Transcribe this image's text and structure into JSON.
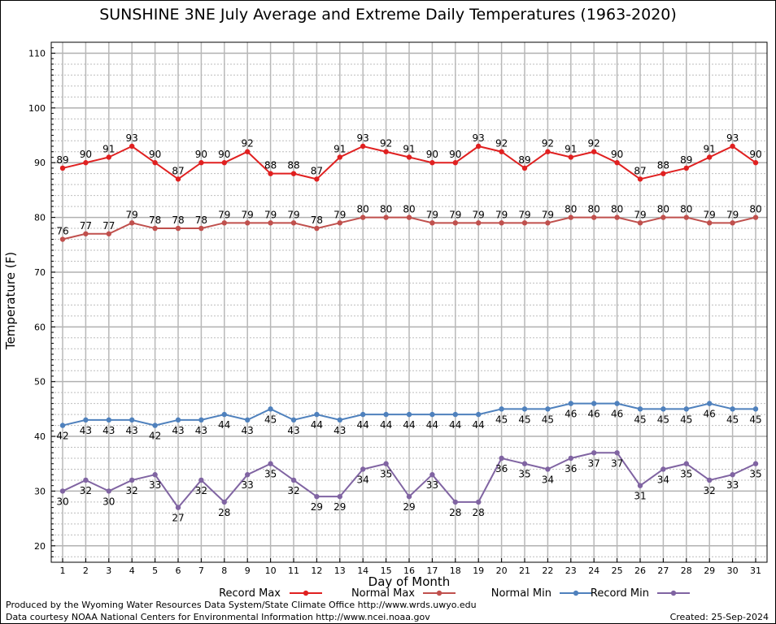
{
  "chart_data": {
    "type": "line",
    "title": "SUNSHINE 3NE July Average and Extreme Daily Temperatures (1963-2020)",
    "xlabel": "Day of Month",
    "ylabel": "Temperature (F)",
    "ylim": [
      17,
      112
    ],
    "yticks": [
      20,
      30,
      40,
      50,
      60,
      70,
      80,
      90,
      100,
      110
    ],
    "grid": true,
    "legend_placement": "bottom",
    "x": [
      1,
      2,
      3,
      4,
      5,
      6,
      7,
      8,
      9,
      10,
      11,
      12,
      13,
      14,
      15,
      16,
      17,
      18,
      19,
      20,
      21,
      22,
      23,
      24,
      25,
      26,
      27,
      28,
      29,
      30,
      31
    ],
    "series": [
      {
        "name": "Record Max",
        "color": "#e02020",
        "label_position": "above",
        "values": [
          89,
          90,
          91,
          93,
          90,
          87,
          90,
          90,
          92,
          88,
          88,
          87,
          91,
          93,
          92,
          91,
          90,
          90,
          93,
          92,
          89,
          92,
          91,
          92,
          90,
          87,
          88,
          89,
          91,
          93,
          90
        ]
      },
      {
        "name": "Normal Max",
        "color": "#c0504d",
        "label_position": "above",
        "values": [
          76,
          77,
          77,
          79,
          78,
          78,
          78,
          79,
          79,
          79,
          79,
          78,
          79,
          80,
          80,
          80,
          79,
          79,
          79,
          79,
          79,
          79,
          80,
          80,
          80,
          79,
          80,
          80,
          79,
          79,
          80
        ]
      },
      {
        "name": "Normal Min",
        "color": "#4f81bd",
        "label_position": "below",
        "values": [
          42,
          43,
          43,
          43,
          42,
          43,
          43,
          44,
          43,
          45,
          43,
          44,
          43,
          44,
          44,
          44,
          44,
          44,
          44,
          45,
          45,
          45,
          46,
          46,
          46,
          45,
          45,
          45,
          46,
          45,
          45
        ]
      },
      {
        "name": "Record Min",
        "color": "#8064a2",
        "label_position": "below",
        "values": [
          30,
          32,
          30,
          32,
          33,
          27,
          32,
          28,
          33,
          35,
          32,
          29,
          29,
          34,
          35,
          29,
          33,
          28,
          28,
          36,
          35,
          34,
          36,
          37,
          37,
          31,
          34,
          35,
          32,
          33,
          35
        ]
      }
    ]
  },
  "footer": {
    "produced_by": "Produced by the Wyoming Water Resources Data System/State Climate Office http://www.wrds.uwyo.edu",
    "data_courtesy": "Data courtesy NOAA National Centers for Environmental Information http://www.ncei.noaa.gov",
    "created": "Created:  25-Sep-2024"
  }
}
